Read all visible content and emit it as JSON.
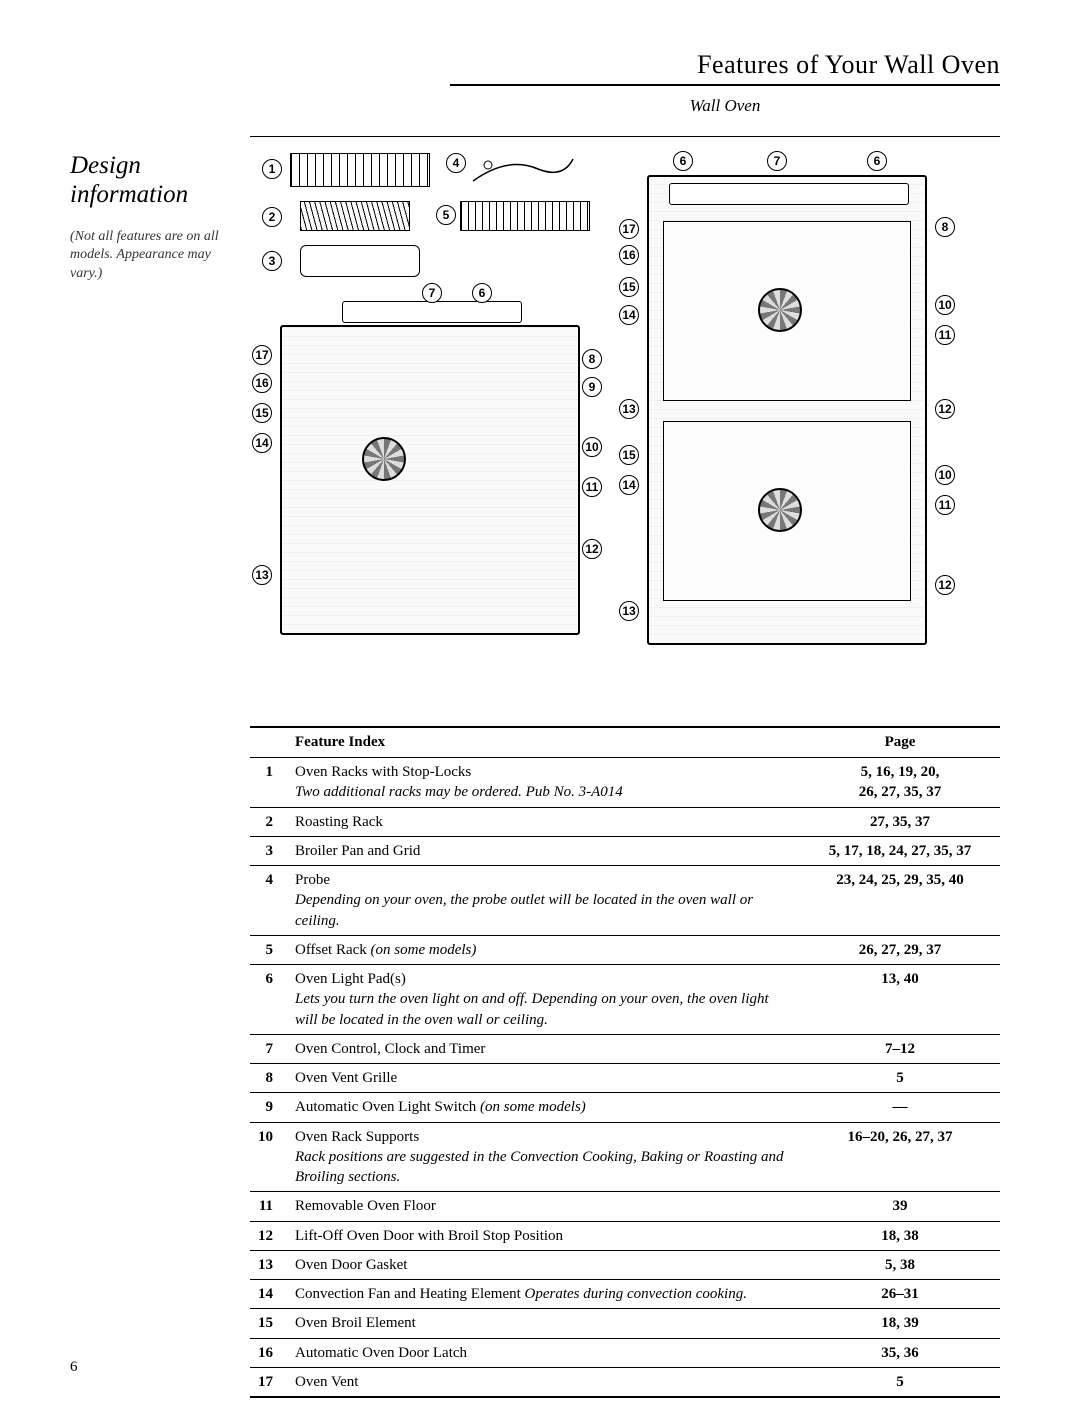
{
  "header": {
    "title": "Features of Your Wall Oven",
    "subtitle": "Wall Oven"
  },
  "design": {
    "title": "Design information",
    "note": "(Not all features are on all models. Appearance may vary.)"
  },
  "table": {
    "head_feature": "Feature Index",
    "head_page": "Page",
    "rows": [
      {
        "n": "1",
        "feature": "Oven Racks with Stop-Locks",
        "note": "Two additional racks may be ordered. Pub No. 3-A014",
        "page": "5, 16, 19, 20, 26, 27, 35, 37"
      },
      {
        "n": "2",
        "feature": "Roasting Rack",
        "note": "",
        "page": "27, 35, 37"
      },
      {
        "n": "3",
        "feature": "Broiler Pan and Grid",
        "note": "",
        "page": "5, 17, 18, 24, 27, 35, 37"
      },
      {
        "n": "4",
        "feature": "Probe",
        "note": "Depending on your oven, the probe outlet will be located in the oven wall or ceiling.",
        "page": "23, 24, 25, 29, 35, 40"
      },
      {
        "n": "5",
        "feature": "Offset Rack",
        "note": "(on some models)",
        "page": "26, 27, 29, 37"
      },
      {
        "n": "6",
        "feature": "Oven Light Pad(s)",
        "note": "Lets you turn the oven light on and off. Depending on your oven, the oven light will be located in the oven wall or ceiling.",
        "page": "13, 40"
      },
      {
        "n": "7",
        "feature": "Oven Control, Clock and Timer",
        "note": "",
        "page": "7–12"
      },
      {
        "n": "8",
        "feature": "Oven Vent Grille",
        "note": "",
        "page": "5"
      },
      {
        "n": "9",
        "feature": "Automatic Oven Light Switch",
        "note": "(on some models)",
        "page": "—"
      },
      {
        "n": "10",
        "feature": "Oven Rack Supports",
        "note": "Rack positions are suggested in the Convection Cooking, Baking or Roasting and Broiling sections.",
        "page": "16–20, 26, 27, 37"
      },
      {
        "n": "11",
        "feature": "Removable Oven Floor",
        "note": "",
        "page": "39"
      },
      {
        "n": "12",
        "feature": "Lift-Off Oven Door with Broil Stop Position",
        "note": "",
        "page": "18, 38"
      },
      {
        "n": "13",
        "feature": "Oven Door Gasket",
        "note": "",
        "page": "5, 38"
      },
      {
        "n": "14",
        "feature": "Convection Fan and Heating Element",
        "note": "Operates during convection cooking.",
        "page": "26–31"
      },
      {
        "n": "15",
        "feature": "Oven Broil Element",
        "note": "",
        "page": "18, 39"
      },
      {
        "n": "16",
        "feature": "Automatic Oven Door Latch",
        "note": "",
        "page": "35, 36"
      },
      {
        "n": "17",
        "feature": "Oven Vent",
        "note": "",
        "page": "5"
      }
    ]
  },
  "page_number": "6",
  "colors": {
    "text": "#000000",
    "bg": "#ffffff"
  }
}
